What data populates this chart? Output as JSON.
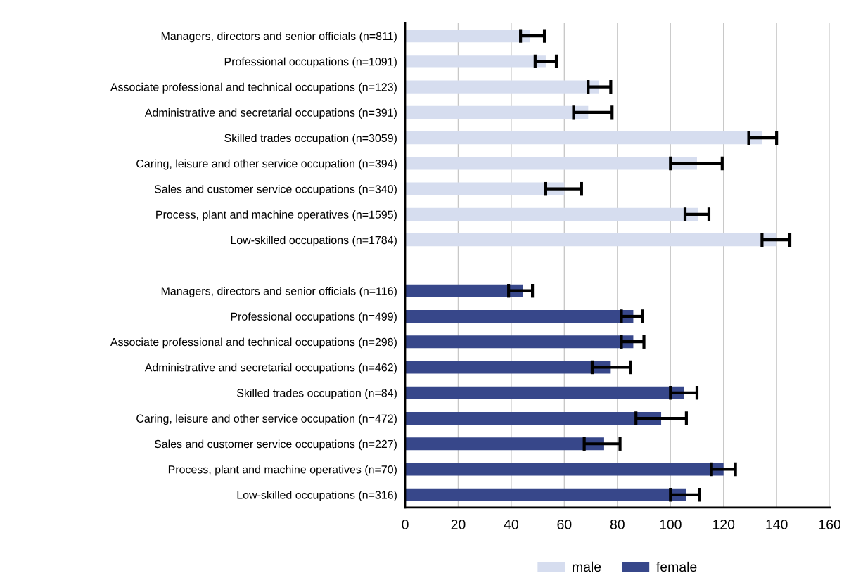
{
  "chart_data": {
    "type": "bar",
    "orientation": "horizontal",
    "categories": [
      "Managers, directors and senior officials (n=811)",
      "Professional occupations (n=1091)",
      "Associate professional and technical occupations (n=123)",
      "Administrative and secretarial occupations (n=391)",
      "Skilled trades occupation (n=3059)",
      "Caring, leisure and other service occupation (n=394)",
      "Sales and customer service occupations (n=340)",
      "Process, plant and machine operatives (n=1595)",
      "Low-skilled occupations (n=1784)",
      null,
      "Managers, directors and senior officials (n=116)",
      "Professional occupations (n=499)",
      "Associate professional and technical occupations (n=298)",
      "Administrative and secretarial occupations (n=462)",
      "Skilled trades occupation (n=84)",
      "Caring, leisure and other service occupation (n=472)",
      "Sales and customer service occupations (n=227)",
      "Process, plant and machine operatives (n=70)",
      "Low-skilled occupations (n=316)"
    ],
    "series": [
      {
        "name": "male",
        "color": "#d6ddef",
        "values": [
          47,
          53,
          73,
          69,
          134.5,
          110,
          60,
          110.5,
          140,
          null,
          null,
          null,
          null,
          null,
          null,
          null,
          null,
          null,
          null
        ],
        "errors": [
          [
            43.5,
            52.5
          ],
          [
            49,
            57
          ],
          [
            69,
            77.5
          ],
          [
            63.5,
            78
          ],
          [
            129.5,
            140
          ],
          [
            100,
            119.5
          ],
          [
            53,
            66.5
          ],
          [
            105.5,
            114.5
          ],
          [
            134.5,
            145
          ],
          null,
          null,
          null,
          null,
          null,
          null,
          null,
          null,
          null,
          null
        ]
      },
      {
        "name": "female",
        "color": "#37478a",
        "values": [
          null,
          null,
          null,
          null,
          null,
          null,
          null,
          null,
          null,
          null,
          44.5,
          86,
          86,
          77.5,
          105,
          96.5,
          75,
          120,
          106
        ],
        "errors": [
          null,
          null,
          null,
          null,
          null,
          null,
          null,
          null,
          null,
          null,
          [
            39,
            48
          ],
          [
            81.5,
            89.5
          ],
          [
            81.5,
            90
          ],
          [
            70.5,
            85
          ],
          [
            100,
            110
          ],
          [
            87,
            106
          ],
          [
            67.5,
            81
          ],
          [
            115.5,
            124.5
          ],
          [
            100,
            111
          ]
        ]
      }
    ],
    "xlim": [
      0,
      160
    ],
    "xticks": [
      0,
      20,
      40,
      60,
      80,
      100,
      120,
      140,
      160
    ],
    "grid": "x",
    "legend": "bottom"
  }
}
